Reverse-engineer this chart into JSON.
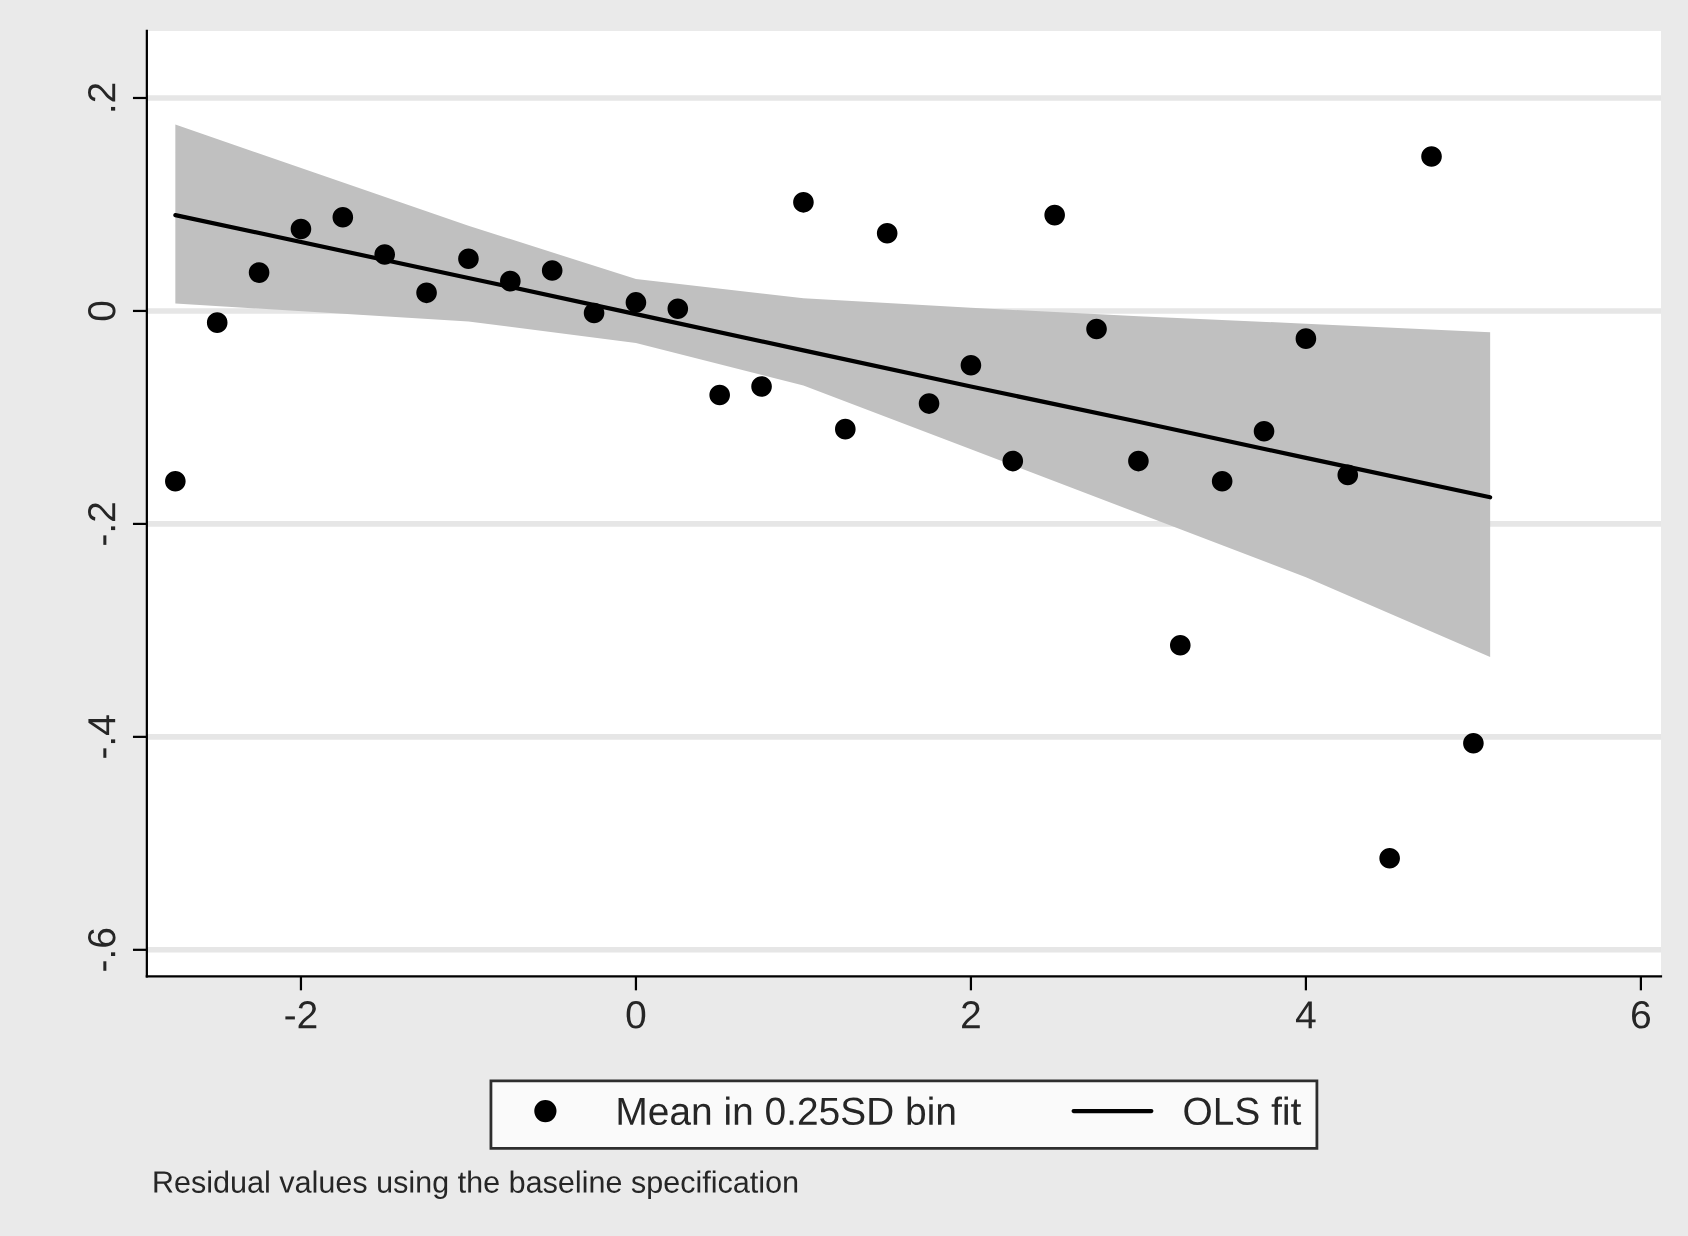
{
  "chart_data": {
    "type": "scatter",
    "annotations": [
      "Residual values using the baseline specification"
    ],
    "xlim": [
      -2.92,
      6.12
    ],
    "xticks": [
      -2,
      0,
      2,
      4,
      6
    ],
    "ylim": [
      -0.625,
      0.263
    ],
    "yticks": [
      {
        "value": 0.2,
        "label": ".2"
      },
      {
        "value": 0,
        "label": "0"
      },
      {
        "value": -0.2,
        "label": "-.2"
      },
      {
        "value": -0.4,
        "label": "-.4"
      },
      {
        "value": -0.6,
        "label": "-.6"
      }
    ],
    "grid": "y",
    "legend": "bottom",
    "marker": "circle",
    "series": [
      {
        "name": "Mean in 0.25SD bin",
        "color": "#000000",
        "x": [
          -2.75,
          -2.5,
          -2.25,
          -2.0,
          -1.75,
          -1.5,
          -1.25,
          -1.0,
          -0.75,
          -0.5,
          -0.25,
          0,
          0.25,
          0.5,
          0.75,
          1.0,
          1.25,
          1.5,
          1.75,
          2.0,
          2.25,
          2.5,
          2.75,
          3.0,
          3.25,
          3.5,
          3.75,
          4.0,
          4.25,
          4.5,
          4.75,
          5.0
        ],
        "values": [
          -0.16,
          -0.011,
          0.036,
          0.077,
          0.088,
          0.053,
          0.017,
          0.049,
          0.028,
          0.038,
          -0.002,
          0.008,
          0.002,
          -0.079,
          -0.071,
          0.102,
          -0.111,
          0.073,
          -0.087,
          -0.051,
          -0.141,
          0.09,
          -0.017,
          -0.141,
          -0.314,
          -0.16,
          -0.113,
          -0.026,
          -0.154,
          -0.514,
          0.145,
          -0.406
        ]
      },
      {
        "name": "OLS fit",
        "type": "line",
        "color": "#000000",
        "line_style": "solid",
        "marker": "none",
        "x": [
          -2.75,
          -1,
          0,
          1,
          2,
          3,
          4,
          5.1
        ],
        "values": [
          0.09,
          0.031,
          -0.003,
          -0.037,
          -0.071,
          -0.104,
          -0.138,
          -0.175
        ],
        "lower": [
          0.007,
          -0.01,
          -0.03,
          -0.07,
          -0.13,
          -0.19,
          -0.25,
          -0.325
        ],
        "upper": [
          0.175,
          0.08,
          0.03,
          0.012,
          0.003,
          -0.005,
          -0.012,
          -0.02
        ]
      }
    ]
  }
}
